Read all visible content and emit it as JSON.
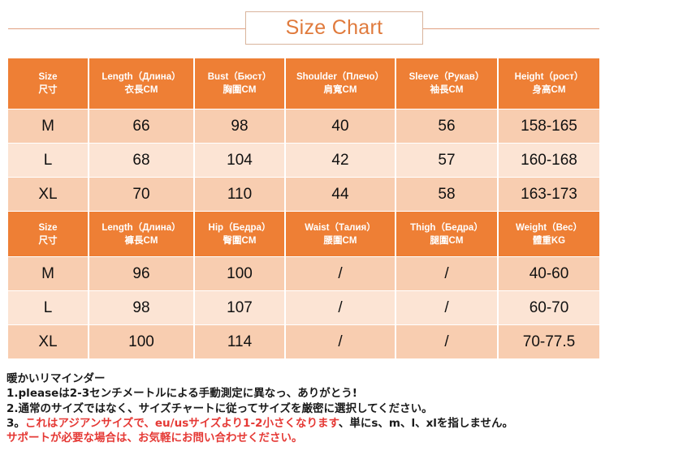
{
  "title": "Size Chart",
  "top_table": {
    "headers": [
      {
        "line1": "Size",
        "line2": "尺寸"
      },
      {
        "line1": "Length（Длина）",
        "line2": "衣長CM"
      },
      {
        "line1": "Bust（Бюст）",
        "line2": "胸圍CM"
      },
      {
        "line1": "Shoulder（Плечо）",
        "line2": "肩寬CM"
      },
      {
        "line1": "Sleeve（Рукав）",
        "line2": "袖長CM"
      },
      {
        "line1": "Height（рост）",
        "line2": "身高CM"
      }
    ],
    "rows": [
      [
        "M",
        "66",
        "98",
        "40",
        "56",
        "158-165"
      ],
      [
        "L",
        "68",
        "104",
        "42",
        "57",
        "160-168"
      ],
      [
        "XL",
        "70",
        "110",
        "44",
        "58",
        "163-173"
      ]
    ]
  },
  "bottom_table": {
    "headers": [
      {
        "line1": "Size",
        "line2": "尺寸"
      },
      {
        "line1": "Length（Длина）",
        "line2": "褲長CM"
      },
      {
        "line1": "Hip（Бедра）",
        "line2": "臀圍CM"
      },
      {
        "line1": "Waist（Талия）",
        "line2": "腰圍CM"
      },
      {
        "line1": "Thigh（Бедра）",
        "line2": "腿圍CM"
      },
      {
        "line1": "Weight（Вес）",
        "line2": "體重KG"
      }
    ],
    "rows": [
      [
        "M",
        "96",
        "100",
        "/",
        "/",
        "40-60"
      ],
      [
        "L",
        "98",
        "107",
        "/",
        "/",
        "60-70"
      ],
      [
        "XL",
        "100",
        "114",
        "/",
        "/",
        "70-77.5"
      ]
    ]
  },
  "notes": {
    "heading": "暖かいリマインダー",
    "line1": "1.pleaseは2-3センチメートルによる手動測定に異なっ、ありがとう!",
    "line2": "2.通常のサイズではなく、サイズチャートに従ってサイズを厳密に選択してください。",
    "line3_prefix": "3。",
    "line3_red": "これはアジアンサイズで、eu/usサイズより1-2小さくなります",
    "line3_suffix": "、単にs、m、l、xlを指しません。",
    "line4": "サポートが必要な場合は、お気軽にお問い合わせください。"
  },
  "colors": {
    "header_orange": "#ee7f35",
    "row_dark": "#f8cdb0",
    "row_light": "#fce4d4",
    "title_text": "#e07a3c",
    "note_red": "#e53935"
  }
}
